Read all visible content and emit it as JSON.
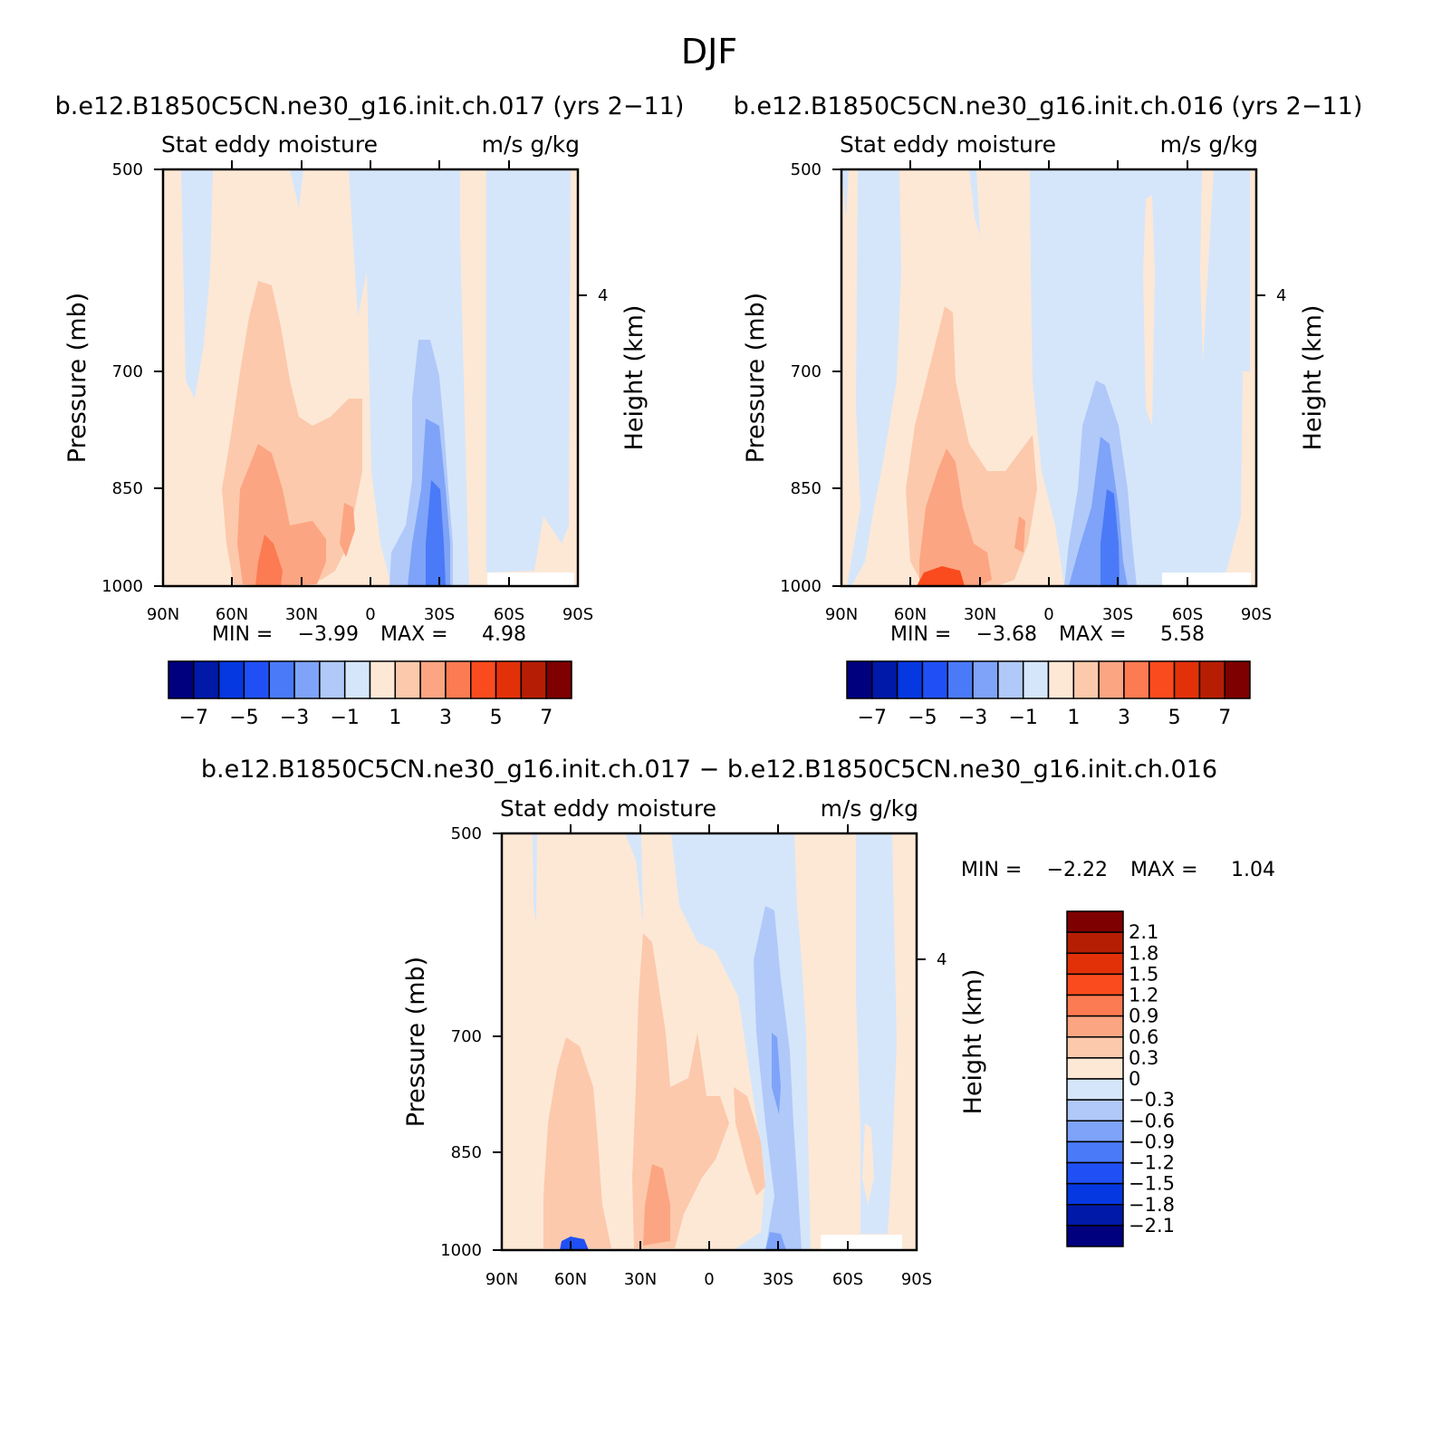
{
  "figure_title": "DJF",
  "colors": {
    "main_scale": [
      "#00007f",
      "#0019a8",
      "#0538e0",
      "#2050f5",
      "#4a7af7",
      "#7ea3f8",
      "#b0c9f9",
      "#d5e6fa",
      "#fde8d6",
      "#fcc9ac",
      "#fca582",
      "#fc7b52",
      "#fa4b1e",
      "#e23109",
      "#b61e04",
      "#7f0000"
    ],
    "diff_scale": [
      "#00007f",
      "#0019a8",
      "#0538e0",
      "#2050f5",
      "#4a7af7",
      "#7ea3f8",
      "#b0c9f9",
      "#d5e6fa",
      "#fde8d6",
      "#fcc9ac",
      "#fca582",
      "#fc7b52",
      "#fa4b1e",
      "#e23109",
      "#b61e04",
      "#7f0000"
    ]
  },
  "chart_data": [
    {
      "type": "heatmap",
      "title": "b.e12.B1850C5CN.ne30_g16.init.ch.017 (yrs 2−11)",
      "subtitle_left": "Stat eddy moisture",
      "subtitle_right": "m/s g/kg",
      "ylabel": "Pressure (mb)",
      "y2label": "Height (km)",
      "xticks": [
        "90N",
        "60N",
        "30N",
        "0",
        "30S",
        "60S",
        "90S"
      ],
      "yticks": [
        "500",
        "700",
        "850",
        "1000"
      ],
      "y2ticks": [
        "4"
      ],
      "ylim": [
        1000,
        500
      ],
      "stats": {
        "min_label": "MIN =",
        "min": "−3.99",
        "max_label": "MAX =",
        "max": "4.98"
      },
      "colorbar_levels": [
        -7,
        -6,
        -5,
        -4,
        -3,
        -2,
        -1,
        0,
        1,
        2,
        3,
        4,
        5,
        6,
        7
      ],
      "colorbar_labels": [
        "−7",
        "−5",
        "−3",
        "−1",
        "1",
        "3",
        "5",
        "7"
      ]
    },
    {
      "type": "heatmap",
      "title": "b.e12.B1850C5CN.ne30_g16.init.ch.016 (yrs 2−11)",
      "subtitle_left": "Stat eddy moisture",
      "subtitle_right": "m/s g/kg",
      "ylabel": "Pressure (mb)",
      "y2label": "Height (km)",
      "xticks": [
        "90N",
        "60N",
        "30N",
        "0",
        "30S",
        "60S",
        "90S"
      ],
      "yticks": [
        "500",
        "700",
        "850",
        "1000"
      ],
      "y2ticks": [
        "4"
      ],
      "ylim": [
        1000,
        500
      ],
      "stats": {
        "min_label": "MIN =",
        "min": "−3.68",
        "max_label": "MAX =",
        "max": "5.58"
      },
      "colorbar_levels": [
        -7,
        -6,
        -5,
        -4,
        -3,
        -2,
        -1,
        0,
        1,
        2,
        3,
        4,
        5,
        6,
        7
      ],
      "colorbar_labels": [
        "−7",
        "−5",
        "−3",
        "−1",
        "1",
        "3",
        "5",
        "7"
      ]
    },
    {
      "type": "heatmap",
      "title": "b.e12.B1850C5CN.ne30_g16.init.ch.017 − b.e12.B1850C5CN.ne30_g16.init.ch.016",
      "subtitle_left": "Stat eddy moisture",
      "subtitle_right": "m/s g/kg",
      "ylabel": "Pressure (mb)",
      "y2label": "Height (km)",
      "xticks": [
        "90N",
        "60N",
        "30N",
        "0",
        "30S",
        "60S",
        "90S"
      ],
      "yticks": [
        "500",
        "700",
        "850",
        "1000"
      ],
      "y2ticks": [
        "4"
      ],
      "ylim": [
        1000,
        500
      ],
      "stats": {
        "min_label": "MIN =",
        "min": "−2.22",
        "max_label": "MAX =",
        "max": "1.04"
      },
      "colorbar_labels": [
        "2.1",
        "1.8",
        "1.5",
        "1.2",
        "0.9",
        "0.6",
        "0.3",
        "0",
        "−0.3",
        "−0.6",
        "−0.9",
        "−1.2",
        "−1.5",
        "−1.8",
        "−2.1"
      ]
    }
  ]
}
